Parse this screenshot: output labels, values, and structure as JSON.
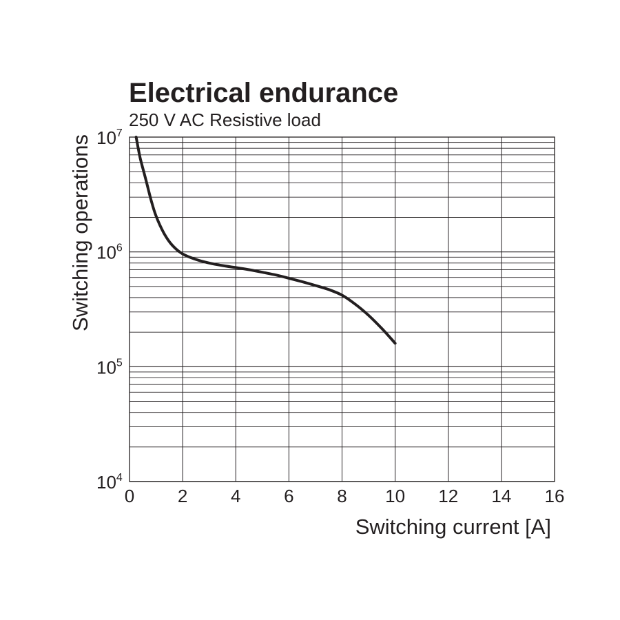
{
  "chart_data": {
    "type": "line",
    "title": "Electrical endurance",
    "subtitle": "250 V AC Resistive load",
    "xlabel": "Switching current [A]",
    "ylabel": "Switching operations",
    "x_scale": "linear",
    "y_scale": "log",
    "xlim": [
      0,
      16
    ],
    "ylim": [
      10000,
      10000000
    ],
    "x_ticks": [
      "0",
      "2",
      "4",
      "6",
      "8",
      "10",
      "12",
      "14",
      "16"
    ],
    "y_ticks": [
      {
        "base": "10",
        "exp": "4"
      },
      {
        "base": "10",
        "exp": "5"
      },
      {
        "base": "10",
        "exp": "6"
      },
      {
        "base": "10",
        "exp": "7"
      }
    ],
    "grid": true,
    "line_color": "#231f20",
    "series": [
      {
        "x": [
          0.25,
          0.4,
          0.6,
          0.8,
          1.0,
          1.3,
          1.6,
          2.0,
          2.5,
          3.0,
          3.5,
          4.0,
          4.5,
          5.0,
          5.5,
          6.0,
          6.5,
          7.0,
          7.5,
          8.0,
          8.5,
          9.0,
          9.5,
          10.0
        ],
        "y": [
          10000000,
          6600000,
          4400000,
          2900000,
          2050000,
          1450000,
          1150000,
          960000,
          860000,
          800000,
          760000,
          730000,
          700000,
          665000,
          630000,
          590000,
          550000,
          510000,
          470000,
          420000,
          350000,
          280000,
          215000,
          160000
        ]
      }
    ]
  }
}
